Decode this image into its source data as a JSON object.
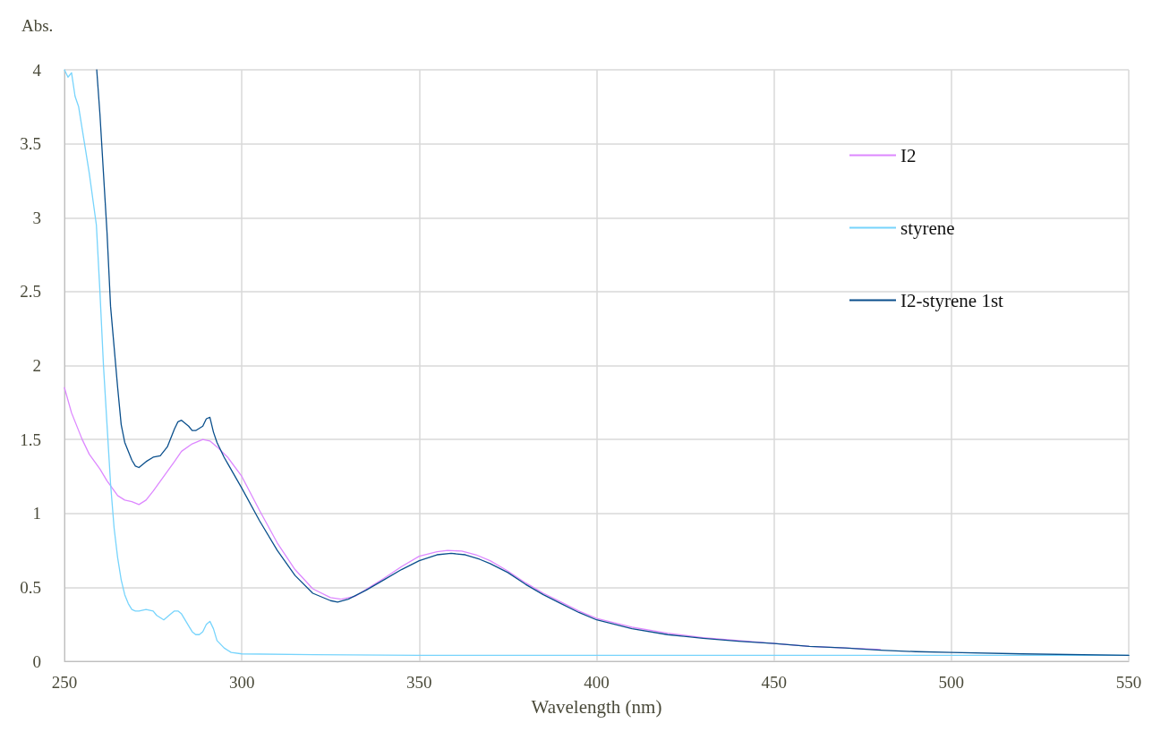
{
  "chart_data": {
    "type": "line",
    "ylabel": "Abs.",
    "xlabel": "Wavelength (nm)",
    "xlim": [
      250,
      550
    ],
    "xticks": [
      250,
      300,
      350,
      400,
      450,
      500,
      550
    ],
    "ylim": [
      0,
      4
    ],
    "yticks": [
      0,
      0.5,
      1,
      1.5,
      2,
      2.5,
      3,
      3.5,
      4
    ],
    "grid": true,
    "legend": "top right",
    "marker": "none",
    "line_style": "solid",
    "series": [
      {
        "name": "I2",
        "color": "#dd88ff",
        "x": [
          250,
          252,
          255,
          257,
          260,
          262,
          265,
          267,
          269,
          271,
          273,
          275,
          278,
          281,
          283,
          286,
          289,
          291,
          293,
          296,
          300,
          305,
          310,
          315,
          320,
          325,
          328,
          332,
          336,
          340,
          345,
          350,
          355,
          358,
          362,
          366,
          370,
          375,
          380,
          385,
          390,
          395,
          400,
          410,
          420,
          430,
          440,
          450,
          460,
          470,
          480
        ],
        "values": [
          1.85,
          1.68,
          1.5,
          1.4,
          1.3,
          1.22,
          1.12,
          1.09,
          1.08,
          1.06,
          1.09,
          1.15,
          1.25,
          1.35,
          1.42,
          1.47,
          1.5,
          1.49,
          1.45,
          1.38,
          1.25,
          1.02,
          0.8,
          0.62,
          0.49,
          0.43,
          0.42,
          0.44,
          0.5,
          0.56,
          0.64,
          0.71,
          0.74,
          0.75,
          0.745,
          0.72,
          0.68,
          0.61,
          0.53,
          0.46,
          0.4,
          0.34,
          0.29,
          0.23,
          0.19,
          0.16,
          0.14,
          0.12,
          0.1,
          0.09,
          0.08
        ]
      },
      {
        "name": "styrene",
        "color": "#77d4fc",
        "x": [
          250,
          251,
          252,
          253,
          254,
          255,
          257,
          259,
          260,
          261,
          262,
          263,
          264,
          265,
          266,
          267,
          268,
          269,
          270,
          271,
          273,
          275,
          276,
          278,
          280,
          281,
          282,
          283,
          285,
          286,
          287,
          288,
          289,
          290,
          291,
          292,
          293,
          295,
          297,
          300,
          320,
          350,
          400,
          450,
          500,
          550
        ],
        "values": [
          4.0,
          3.95,
          3.98,
          3.82,
          3.75,
          3.6,
          3.3,
          2.95,
          2.5,
          2.0,
          1.6,
          1.2,
          0.9,
          0.7,
          0.55,
          0.45,
          0.39,
          0.35,
          0.34,
          0.34,
          0.35,
          0.34,
          0.31,
          0.28,
          0.32,
          0.34,
          0.34,
          0.32,
          0.24,
          0.2,
          0.18,
          0.18,
          0.2,
          0.25,
          0.27,
          0.22,
          0.14,
          0.09,
          0.06,
          0.05,
          0.045,
          0.04,
          0.04,
          0.04,
          0.04,
          0.04
        ]
      },
      {
        "name": "I2-styrene 1st",
        "color": "#0a4f8c",
        "x": [
          259.1,
          260,
          262,
          263,
          265,
          266,
          267,
          269,
          270,
          271,
          273,
          275,
          277,
          279,
          281,
          282,
          283,
          285,
          286,
          287,
          289,
          290,
          291,
          292,
          293,
          295,
          300,
          305,
          310,
          315,
          320,
          325,
          327,
          330,
          335,
          340,
          345,
          350,
          355,
          359,
          363,
          367,
          370,
          375,
          380,
          385,
          390,
          395,
          400,
          410,
          420,
          430,
          440,
          450,
          460,
          470,
          480,
          490,
          500,
          520,
          550
        ],
        "values": [
          4.0,
          3.7,
          2.9,
          2.4,
          1.85,
          1.6,
          1.48,
          1.36,
          1.32,
          1.31,
          1.35,
          1.38,
          1.39,
          1.45,
          1.57,
          1.62,
          1.63,
          1.59,
          1.56,
          1.56,
          1.59,
          1.64,
          1.65,
          1.55,
          1.48,
          1.38,
          1.17,
          0.95,
          0.75,
          0.58,
          0.46,
          0.41,
          0.4,
          0.42,
          0.48,
          0.55,
          0.62,
          0.68,
          0.72,
          0.73,
          0.72,
          0.69,
          0.66,
          0.6,
          0.52,
          0.45,
          0.39,
          0.33,
          0.28,
          0.22,
          0.18,
          0.155,
          0.135,
          0.12,
          0.1,
          0.09,
          0.075,
          0.065,
          0.06,
          0.05,
          0.04
        ]
      }
    ]
  }
}
